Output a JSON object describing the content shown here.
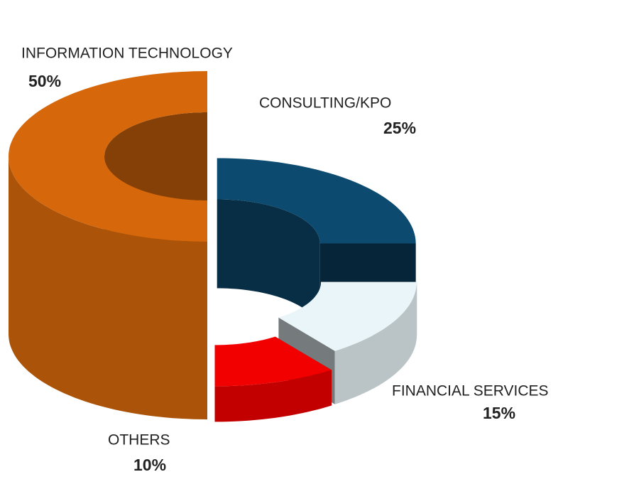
{
  "chart_data": {
    "type": "donut3d",
    "categories": [
      "INFORMATION TECHNOLOGY",
      "CONSULTING/KPO",
      "FINANCIAL SERVICES",
      "OTHERS"
    ],
    "values": [
      50,
      25,
      15,
      10
    ],
    "value_labels": [
      "50%",
      "25%",
      "15%",
      "10%"
    ],
    "colors": [
      "#d6680b",
      "#0c4a70",
      "#e9f5f8",
      "#f20000"
    ]
  }
}
